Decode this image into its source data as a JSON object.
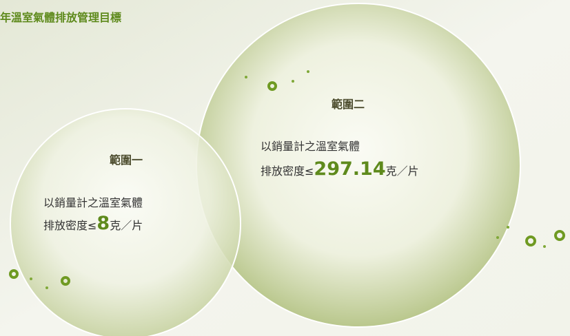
{
  "header": {
    "title": "年溫室氣體排放管理目標"
  },
  "scopes": [
    {
      "title": "範圍一",
      "line1": "以銷量計之溫室氣體",
      "prefix": "排放密度≤",
      "value": 8,
      "suffix": "克／片"
    },
    {
      "title": "範圍二",
      "line1": "以銷量計之溫室氣體",
      "prefix": "排放密度≤",
      "value": 297.14,
      "suffix": "克／片"
    }
  ]
}
